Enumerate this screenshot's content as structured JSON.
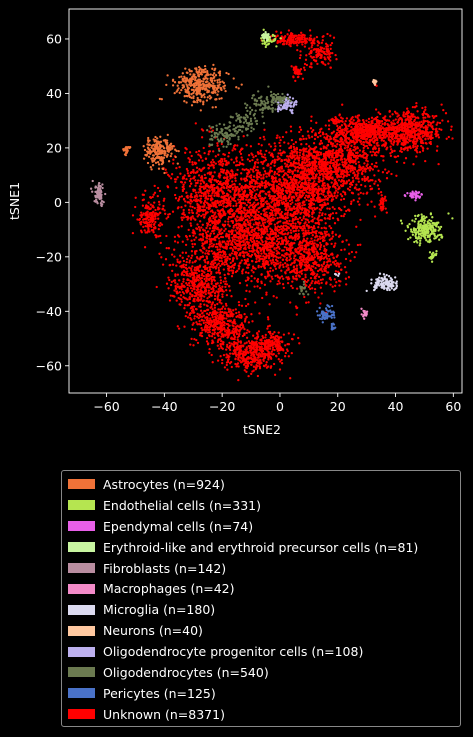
{
  "chart_data": {
    "type": "scatter",
    "xlabel": "tSNE2",
    "ylabel": "tSNE1",
    "xlim": [
      -73,
      63
    ],
    "ylim": [
      -70,
      71
    ],
    "xticks": [
      -60,
      -40,
      -20,
      0,
      20,
      40,
      60
    ],
    "yticks": [
      -60,
      -40,
      -20,
      0,
      20,
      40,
      60
    ],
    "xtick_labels": [
      "−60",
      "−40",
      "−20",
      "0",
      "20",
      "40",
      "60"
    ],
    "ytick_labels": [
      "−60",
      "−40",
      "−20",
      "0",
      "20",
      "40",
      "60"
    ],
    "grid": false,
    "legend_position": "below",
    "background": "#000000",
    "series": [
      {
        "name": "Astrocytes (n=924)",
        "color": "#F07238",
        "clusters": [
          {
            "cx": -27,
            "cy": 43,
            "sx": 4.5,
            "sy": 3.2,
            "n": 330
          },
          {
            "cx": -42,
            "cy": 19,
            "sx": 2.6,
            "sy": 2.8,
            "n": 190
          },
          {
            "cx": -53,
            "cy": 19,
            "sx": 0.7,
            "sy": 0.9,
            "n": 20
          }
        ]
      },
      {
        "name": "Endothelial cells (n=331)",
        "color": "#B5E550",
        "clusters": [
          {
            "cx": 50,
            "cy": -10,
            "sx": 3.0,
            "sy": 2.4,
            "n": 200
          },
          {
            "cx": 53,
            "cy": -20,
            "sx": 0.6,
            "sy": 1.2,
            "n": 20
          },
          {
            "cx": -4,
            "cy": 59.5,
            "sx": 1.4,
            "sy": 1.0,
            "n": 40
          }
        ]
      },
      {
        "name": "Ependymal cells (n=74)",
        "color": "#E85FE8",
        "clusters": [
          {
            "cx": 46.5,
            "cy": 2.5,
            "sx": 1.2,
            "sy": 0.7,
            "n": 45
          }
        ]
      },
      {
        "name": "Erythroid-like and erythroid precursor cells (n=81)",
        "color": "#C8F5A0",
        "clusters": [
          {
            "cx": -5,
            "cy": 61,
            "sx": 1.0,
            "sy": 0.8,
            "n": 30
          }
        ]
      },
      {
        "name": "Fibroblasts (n=142)",
        "color": "#B98DA0",
        "clusters": [
          {
            "cx": -62.5,
            "cy": 3,
            "sx": 0.9,
            "sy": 2.0,
            "n": 70
          }
        ]
      },
      {
        "name": "Macrophages (n=42)",
        "color": "#F28AC8",
        "clusters": [
          {
            "cx": 29.5,
            "cy": -41,
            "sx": 0.6,
            "sy": 0.6,
            "n": 20
          }
        ]
      },
      {
        "name": "Microglia (n=180)",
        "color": "#DCDAF0",
        "clusters": [
          {
            "cx": 37,
            "cy": -30,
            "sx": 2.4,
            "sy": 1.3,
            "n": 110
          },
          {
            "cx": 20,
            "cy": -27,
            "sx": 0.4,
            "sy": 0.4,
            "n": 5
          }
        ]
      },
      {
        "name": "Neurons (n=40)",
        "color": "#FFC8A0",
        "clusters": [
          {
            "cx": 32.5,
            "cy": 44,
            "sx": 0.5,
            "sy": 0.5,
            "n": 15
          }
        ]
      },
      {
        "name": "Oligodendrocyte progenitor cells (n=108)",
        "color": "#BDB0EE",
        "clusters": [
          {
            "cx": 2.5,
            "cy": 36,
            "sx": 1.6,
            "sy": 1.3,
            "n": 75
          }
        ]
      },
      {
        "name": "Oligodendrocytes (n=540)",
        "color": "#6B7A50",
        "clusters": [
          {
            "cx": -20,
            "cy": 25,
            "sx": 3.0,
            "sy": 2.0,
            "n": 90
          },
          {
            "cx": -12,
            "cy": 30,
            "sx": 2.5,
            "sy": 2.0,
            "n": 70
          },
          {
            "cx": -6,
            "cy": 36,
            "sx": 2.5,
            "sy": 2.0,
            "n": 70
          },
          {
            "cx": 0,
            "cy": 38,
            "sx": 1.5,
            "sy": 1.0,
            "n": 40
          },
          {
            "cx": 8,
            "cy": -32,
            "sx": 0.8,
            "sy": 1.2,
            "n": 20
          }
        ]
      },
      {
        "name": "Pericytes (n=125)",
        "color": "#4A72C8",
        "clusters": [
          {
            "cx": 16,
            "cy": -41,
            "sx": 1.4,
            "sy": 1.5,
            "n": 60
          },
          {
            "cx": 18.5,
            "cy": -46,
            "sx": 0.5,
            "sy": 0.9,
            "n": 15
          }
        ]
      },
      {
        "name": "Unknown (n=8371)",
        "color": "#FF0000",
        "clusters": [
          {
            "cx": 5,
            "cy": 5,
            "sx": 10,
            "sy": 9,
            "n": 1400
          },
          {
            "cx": 20,
            "cy": 15,
            "sx": 8,
            "sy": 6,
            "n": 700
          },
          {
            "cx": 30,
            "cy": 26,
            "sx": 6,
            "sy": 2.5,
            "n": 500
          },
          {
            "cx": 45,
            "cy": 26,
            "sx": 6,
            "sy": 3.5,
            "n": 550
          },
          {
            "cx": -22,
            "cy": 2,
            "sx": 8,
            "sy": 9,
            "n": 900
          },
          {
            "cx": -10,
            "cy": -15,
            "sx": 10,
            "sy": 8,
            "n": 1000
          },
          {
            "cx": 10,
            "cy": -20,
            "sx": 6,
            "sy": 6,
            "n": 500
          },
          {
            "cx": -28,
            "cy": -30,
            "sx": 5,
            "sy": 6,
            "n": 450
          },
          {
            "cx": -20,
            "cy": -45,
            "sx": 5,
            "sy": 4,
            "n": 400
          },
          {
            "cx": -10,
            "cy": -56,
            "sx": 5,
            "sy": 3,
            "n": 350
          },
          {
            "cx": -3,
            "cy": -52,
            "sx": 3,
            "sy": 2,
            "n": 150
          },
          {
            "cx": -45,
            "cy": -5,
            "sx": 1.8,
            "sy": 3.5,
            "n": 160
          },
          {
            "cx": 5,
            "cy": 60,
            "sx": 4,
            "sy": 1.2,
            "n": 150
          },
          {
            "cx": 14,
            "cy": 55,
            "sx": 3,
            "sy": 2.5,
            "n": 120
          },
          {
            "cx": 6,
            "cy": 48,
            "sx": 1.2,
            "sy": 1.5,
            "n": 40
          },
          {
            "cx": 20,
            "cy": 30,
            "sx": 1.2,
            "sy": 0.6,
            "n": 30
          },
          {
            "cx": 35.5,
            "cy": 0,
            "sx": 0.6,
            "sy": 1.5,
            "n": 30
          },
          {
            "cx": 33,
            "cy": 43,
            "sx": 0.3,
            "sy": 0.3,
            "n": 3
          }
        ]
      }
    ]
  }
}
